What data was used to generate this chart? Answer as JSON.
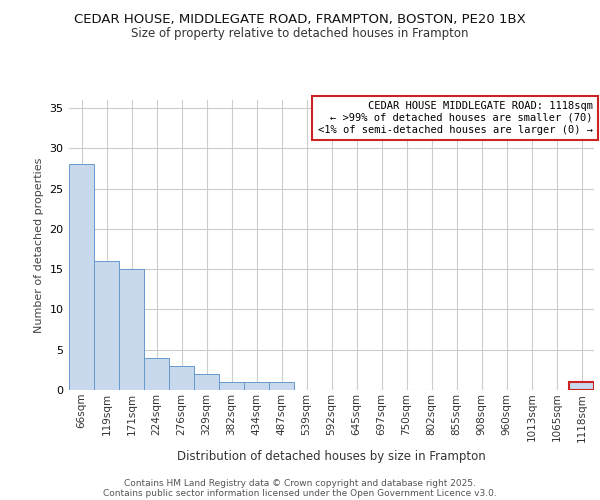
{
  "title1": "CEDAR HOUSE, MIDDLEGATE ROAD, FRAMPTON, BOSTON, PE20 1BX",
  "title2": "Size of property relative to detached houses in Frampton",
  "xlabel": "Distribution of detached houses by size in Frampton",
  "ylabel": "Number of detached properties",
  "categories": [
    "66sqm",
    "119sqm",
    "171sqm",
    "224sqm",
    "276sqm",
    "329sqm",
    "382sqm",
    "434sqm",
    "487sqm",
    "539sqm",
    "592sqm",
    "645sqm",
    "697sqm",
    "750sqm",
    "802sqm",
    "855sqm",
    "908sqm",
    "960sqm",
    "1013sqm",
    "1065sqm",
    "1118sqm"
  ],
  "values": [
    28,
    16,
    15,
    4,
    3,
    2,
    1,
    1,
    1,
    0,
    0,
    0,
    0,
    0,
    0,
    0,
    0,
    0,
    0,
    0,
    1
  ],
  "bar_color": "#c8d9ed",
  "bar_edge_color": "#6699cc",
  "highlight_index": 20,
  "highlight_edge_color": "#cc2222",
  "annotation_box_text": "CEDAR HOUSE MIDDLEGATE ROAD: 1118sqm\n← >99% of detached houses are smaller (70)\n<1% of semi-detached houses are larger (0) →",
  "annotation_box_edge_color": "#cc2222",
  "ylim": [
    0,
    36
  ],
  "yticks": [
    0,
    5,
    10,
    15,
    20,
    25,
    30,
    35
  ],
  "footer_line1": "Contains HM Land Registry data © Crown copyright and database right 2025.",
  "footer_line2": "Contains public sector information licensed under the Open Government Licence v3.0.",
  "bg_color": "#ffffff",
  "grid_color": "#cccccc"
}
